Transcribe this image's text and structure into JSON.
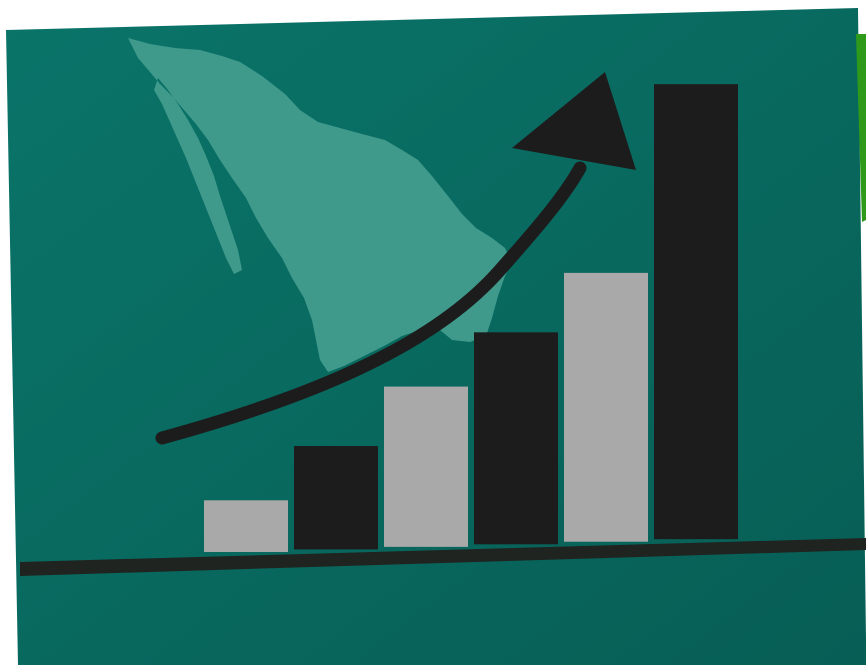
{
  "scene": {
    "description_icons": [
      "mexico-map-icon",
      "trend-arrow-icon",
      "bar-chart-icon"
    ],
    "colors": {
      "panel_bg": "#0a7469",
      "panel_bg_dark": "#075e55",
      "map_fill": "#3f9a8c",
      "accent_green": "#2f9a1a",
      "bar_dark": "#1c1c1c",
      "bar_light": "#a9a9a9",
      "baseline": "#1f2420",
      "arrow": "#1c1c1c"
    },
    "bars": [
      {
        "shade": "light",
        "value": 1
      },
      {
        "shade": "dark",
        "value": 2
      },
      {
        "shade": "light",
        "value": 3.1
      },
      {
        "shade": "dark",
        "value": 4.1
      },
      {
        "shade": "light",
        "value": 5.2
      },
      {
        "shade": "dark",
        "value": 8.8
      }
    ]
  }
}
